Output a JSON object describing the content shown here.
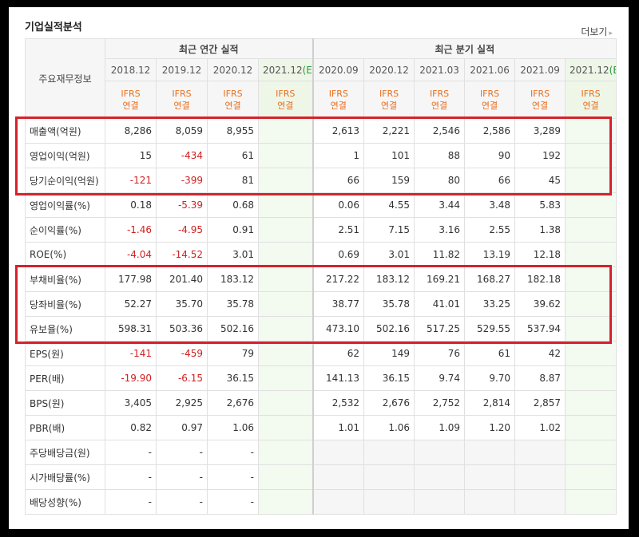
{
  "header": {
    "title": "기업실적분석",
    "more_label": "더보기",
    "more_arrow": "▸"
  },
  "columns": {
    "corner_label": "주요재무정보",
    "annual_label": "최근 연간 실적",
    "quarter_label": "최근 분기 실적",
    "annual_periods": [
      "2018.12",
      "2019.12",
      "2020.12",
      "2021.12"
    ],
    "quarter_periods": [
      "2020.09",
      "2020.12",
      "2021.03",
      "2021.06",
      "2021.09",
      "2021.12"
    ],
    "estimate_mark": "(E)",
    "ifrs_line1": "IFRS",
    "ifrs_line2": "연결"
  },
  "rows": [
    {
      "label": "매출액(억원)",
      "annual": [
        "8,286",
        "8,059",
        "8,955",
        ""
      ],
      "quarter": [
        "2,613",
        "2,221",
        "2,546",
        "2,586",
        "3,289",
        ""
      ]
    },
    {
      "label": "영업이익(억원)",
      "annual": [
        "15",
        "-434",
        "61",
        ""
      ],
      "quarter": [
        "1",
        "101",
        "88",
        "90",
        "192",
        ""
      ]
    },
    {
      "label": "당기순이익(억원)",
      "annual": [
        "-121",
        "-399",
        "81",
        ""
      ],
      "quarter": [
        "66",
        "159",
        "80",
        "66",
        "45",
        ""
      ]
    },
    {
      "label": "영업이익률(%)",
      "annual": [
        "0.18",
        "-5.39",
        "0.68",
        ""
      ],
      "quarter": [
        "0.06",
        "4.55",
        "3.44",
        "3.48",
        "5.83",
        ""
      ]
    },
    {
      "label": "순이익률(%)",
      "annual": [
        "-1.46",
        "-4.95",
        "0.91",
        ""
      ],
      "quarter": [
        "2.51",
        "7.15",
        "3.16",
        "2.55",
        "1.38",
        ""
      ]
    },
    {
      "label": "ROE(%)",
      "annual": [
        "-4.04",
        "-14.52",
        "3.01",
        ""
      ],
      "quarter": [
        "0.69",
        "3.01",
        "11.82",
        "13.19",
        "12.18",
        ""
      ]
    },
    {
      "label": "부채비율(%)",
      "annual": [
        "177.98",
        "201.40",
        "183.12",
        ""
      ],
      "quarter": [
        "217.22",
        "183.12",
        "169.21",
        "168.27",
        "182.18",
        ""
      ]
    },
    {
      "label": "당좌비율(%)",
      "annual": [
        "52.27",
        "35.70",
        "35.78",
        ""
      ],
      "quarter": [
        "38.77",
        "35.78",
        "41.01",
        "33.25",
        "39.62",
        ""
      ]
    },
    {
      "label": "유보율(%)",
      "annual": [
        "598.31",
        "503.36",
        "502.16",
        ""
      ],
      "quarter": [
        "473.10",
        "502.16",
        "517.25",
        "529.55",
        "537.94",
        ""
      ]
    },
    {
      "label": "EPS(원)",
      "annual": [
        "-141",
        "-459",
        "79",
        ""
      ],
      "quarter": [
        "62",
        "149",
        "76",
        "61",
        "42",
        ""
      ]
    },
    {
      "label": "PER(배)",
      "annual": [
        "-19.90",
        "-6.15",
        "36.15",
        ""
      ],
      "quarter": [
        "141.13",
        "36.15",
        "9.74",
        "9.70",
        "8.87",
        ""
      ]
    },
    {
      "label": "BPS(원)",
      "annual": [
        "3,405",
        "2,925",
        "2,676",
        ""
      ],
      "quarter": [
        "2,532",
        "2,676",
        "2,752",
        "2,814",
        "2,857",
        ""
      ]
    },
    {
      "label": "PBR(배)",
      "annual": [
        "0.82",
        "0.97",
        "1.06",
        ""
      ],
      "quarter": [
        "1.01",
        "1.06",
        "1.09",
        "1.20",
        "1.02",
        ""
      ]
    },
    {
      "label": "주당배당금(원)",
      "annual": [
        "-",
        "-",
        "-",
        ""
      ],
      "quarter": [
        "",
        "",
        "",
        "",
        "",
        ""
      ]
    },
    {
      "label": "시가배당률(%)",
      "annual": [
        "-",
        "-",
        "-",
        ""
      ],
      "quarter": [
        "",
        "",
        "",
        "",
        "",
        ""
      ]
    },
    {
      "label": "배당성향(%)",
      "annual": [
        "-",
        "-",
        "-",
        ""
      ],
      "quarter": [
        "",
        "",
        "",
        "",
        "",
        ""
      ]
    }
  ],
  "highlight_groups": [
    {
      "first_row": 0,
      "last_row": 2
    },
    {
      "first_row": 6,
      "last_row": 8
    }
  ],
  "colors": {
    "negative": "#d22020",
    "highlight": "#d6222b",
    "ifrs": "#e86f1e",
    "estimate": "#2a9a3a"
  }
}
